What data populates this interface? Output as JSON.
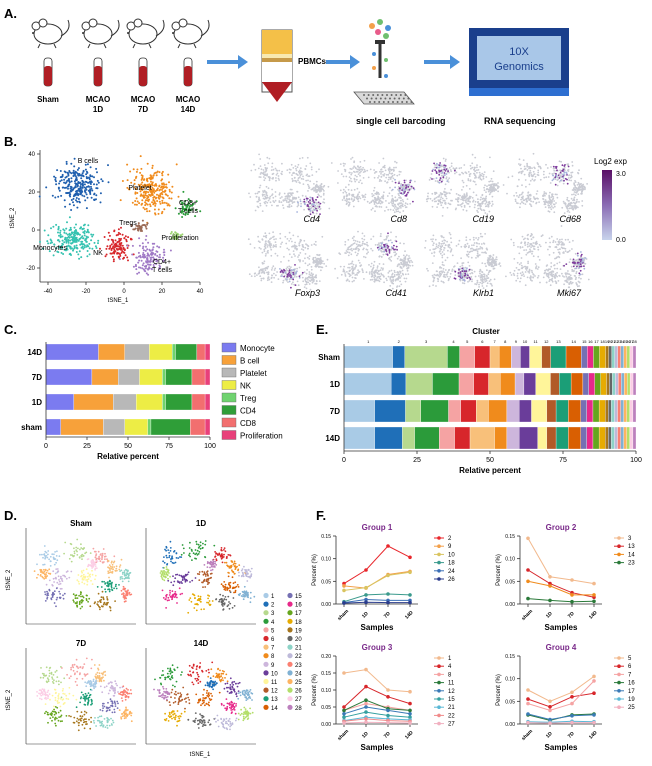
{
  "panels": {
    "a": {
      "label": "A.",
      "groups": [
        "Sham",
        "MCAO\n1D",
        "MCAO\n7D",
        "MCAO\n14D"
      ],
      "pbmc_label": "PBMCs",
      "barcoding_label": "single cell barcoding",
      "sequencing_label": "RNA sequencing",
      "genomics_logo": "10X\nGenomics"
    },
    "b": {
      "label": "B.",
      "tsne_xlabel": "tSNE_1",
      "tsne_ylabel": "tSNE_2",
      "x_ticks": [
        "-40",
        "-20",
        "0",
        "20",
        "40"
      ],
      "y_ticks": [
        "40",
        "20",
        "0",
        "-20"
      ],
      "clusters": [
        "B cells",
        "Platelet",
        "CD8+\nT cells",
        "Tregs",
        "Proliferation",
        "Monocytes",
        "NK",
        "CD4+\nT cells"
      ],
      "genes": [
        "Cd4",
        "Cd8",
        "Cd19",
        "Cd68",
        "Foxp3",
        "Cd41",
        "Klrb1",
        "Mki67"
      ],
      "colorbar_title": "Log2 exp",
      "colorbar_max": "3.0",
      "colorbar_min": "0.0"
    },
    "c": {
      "label": "C."
    },
    "d": {
      "label": "D.",
      "conditions": [
        "Sham",
        "1D",
        "7D",
        "14D"
      ],
      "ylabel": "tSNE_2",
      "xlabel": "tSNE_1",
      "legend_labels": [
        "1",
        "2",
        "3",
        "4",
        "5",
        "6",
        "7",
        "8",
        "9",
        "10",
        "11",
        "12",
        "13",
        "14",
        "15",
        "16",
        "17",
        "18",
        "19",
        "20",
        "21",
        "22",
        "23",
        "24",
        "25",
        "26",
        "27",
        "28"
      ]
    },
    "e": {
      "label": "E."
    },
    "f": {
      "label": "F."
    }
  },
  "chart_data": [
    {
      "id": "C",
      "type": "bar",
      "orientation": "horizontal-stacked",
      "categories": [
        "14D",
        "7D",
        "1D",
        "sham"
      ],
      "xlabel": "Relative percent",
      "xlim": [
        0,
        100
      ],
      "x_ticks": [
        "0",
        "25",
        "50",
        "75",
        "100"
      ],
      "series": [
        {
          "name": "Monocyte",
          "color": "#7b7bf0",
          "values": [
            32,
            28,
            17,
            9
          ]
        },
        {
          "name": "B cell",
          "color": "#f7a13a",
          "values": [
            16,
            16,
            24,
            26
          ]
        },
        {
          "name": "Platelet",
          "color": "#b8b8b8",
          "values": [
            15,
            13,
            14,
            13
          ]
        },
        {
          "name": "NK",
          "color": "#eded45",
          "values": [
            14,
            14,
            16,
            14
          ]
        },
        {
          "name": "Treg",
          "color": "#6fd36f",
          "values": [
            2,
            2,
            2,
            2
          ]
        },
        {
          "name": "CD4",
          "color": "#2f9e38",
          "values": [
            13,
            16,
            16,
            24
          ]
        },
        {
          "name": "CD8",
          "color": "#f26f6f",
          "values": [
            5,
            8,
            8,
            9
          ]
        },
        {
          "name": "Proliferation",
          "color": "#e8407a",
          "values": [
            3,
            3,
            3,
            3
          ]
        }
      ]
    },
    {
      "id": "E",
      "type": "bar",
      "orientation": "horizontal-stacked",
      "title": "Cluster",
      "categories": [
        "Sham",
        "1D",
        "7D",
        "14D"
      ],
      "xlabel": "Relative percent",
      "xlim": [
        0,
        100
      ],
      "x_ticks": [
        "0",
        "25",
        "50",
        "75",
        "100"
      ],
      "top_ticks": [
        "1",
        "2",
        "3",
        "4",
        "5",
        "6",
        "7",
        "8",
        "9",
        "10",
        "11",
        "12",
        "13",
        "14",
        "15",
        "16",
        "17",
        "18",
        "19",
        "20",
        "21",
        "22",
        "23",
        "24",
        "25",
        "26",
        "27",
        "28"
      ],
      "series": [
        {
          "name": "1",
          "color": "#a9cbe6",
          "values": [
            16,
            16,
            10,
            10
          ]
        },
        {
          "name": "2",
          "color": "#1f6fb8",
          "values": [
            4,
            5,
            10,
            9
          ]
        },
        {
          "name": "3",
          "color": "#b6d98e",
          "values": [
            14,
            9,
            5,
            4
          ]
        },
        {
          "name": "4",
          "color": "#2b9b3a",
          "values": [
            4,
            9,
            9,
            8
          ]
        },
        {
          "name": "5",
          "color": "#f5a3a3",
          "values": [
            5,
            5,
            4,
            5
          ]
        },
        {
          "name": "6",
          "color": "#d7262b",
          "values": [
            5,
            5,
            5,
            5
          ]
        },
        {
          "name": "7",
          "color": "#f8c07a",
          "values": [
            3,
            4,
            4,
            8
          ]
        },
        {
          "name": "8",
          "color": "#f08b1c",
          "values": [
            4,
            5,
            6,
            4
          ]
        },
        {
          "name": "9",
          "color": "#cdb6dc",
          "values": [
            3,
            3,
            4,
            4
          ]
        },
        {
          "name": "10",
          "color": "#6a3d9a",
          "values": [
            3,
            4,
            4,
            6
          ]
        },
        {
          "name": "11",
          "color": "#fff59a",
          "values": [
            4,
            5,
            5,
            3
          ]
        },
        {
          "name": "12",
          "color": "#b15a28",
          "values": [
            3,
            3,
            3,
            3
          ]
        },
        {
          "name": "13",
          "color": "#1b9e77",
          "values": [
            5,
            4,
            4,
            4
          ]
        },
        {
          "name": "14",
          "color": "#d95f02",
          "values": [
            5,
            4,
            4,
            4
          ]
        },
        {
          "name": "15",
          "color": "#7570b3",
          "values": [
            2,
            2,
            2,
            2
          ]
        },
        {
          "name": "16",
          "color": "#e7298a",
          "values": [
            2,
            2,
            2,
            2
          ]
        },
        {
          "name": "17",
          "color": "#66a61e",
          "values": [
            2,
            2,
            2,
            2
          ]
        },
        {
          "name": "18",
          "color": "#e6ab02",
          "values": [
            2,
            2,
            2,
            2
          ]
        },
        {
          "name": "19",
          "color": "#a6761d",
          "values": [
            1,
            1,
            1,
            1
          ]
        },
        {
          "name": "20",
          "color": "#666666",
          "values": [
            1,
            1,
            1,
            1
          ]
        },
        {
          "name": "21",
          "color": "#8dd3c7",
          "values": [
            1,
            1,
            1,
            1
          ]
        },
        {
          "name": "22",
          "color": "#bebada",
          "values": [
            1,
            1,
            1,
            1
          ]
        },
        {
          "name": "23",
          "color": "#fb8072",
          "values": [
            1,
            1,
            1,
            1
          ]
        },
        {
          "name": "24",
          "color": "#80b1d3",
          "values": [
            1,
            1,
            1,
            1
          ]
        },
        {
          "name": "25",
          "color": "#fdb462",
          "values": [
            1,
            1,
            1,
            1
          ]
        },
        {
          "name": "26",
          "color": "#b3de69",
          "values": [
            1,
            1,
            1,
            1
          ]
        },
        {
          "name": "27",
          "color": "#fccde5",
          "values": [
            1,
            1,
            1,
            1
          ]
        },
        {
          "name": "28",
          "color": "#bc80bd",
          "values": [
            1,
            1,
            1,
            1
          ]
        }
      ]
    },
    {
      "id": "F1",
      "type": "line",
      "title": "Group 1",
      "x": [
        "sham",
        "1D",
        "7D",
        "14D"
      ],
      "xlabel": "Samples",
      "ylabel": "Percent (%)",
      "ylim": [
        0,
        0.15
      ],
      "y_ticks": [
        "0.00",
        "0.05",
        "0.10",
        "0.15"
      ],
      "series": [
        {
          "name": "2",
          "color": "#e8262b",
          "values": [
            0.045,
            0.075,
            0.128,
            0.103
          ]
        },
        {
          "name": "9",
          "color": "#f3a04a",
          "values": [
            0.04,
            0.035,
            0.065,
            0.072
          ]
        },
        {
          "name": "10",
          "color": "#d9c460",
          "values": [
            0.03,
            0.036,
            0.063,
            0.07
          ]
        },
        {
          "name": "18",
          "color": "#3a9a8c",
          "values": [
            0.005,
            0.02,
            0.022,
            0.02
          ]
        },
        {
          "name": "24",
          "color": "#3b6fb6",
          "values": [
            0.003,
            0.01,
            0.008,
            0.008
          ]
        },
        {
          "name": "26",
          "color": "#2b3c8c",
          "values": [
            0.002,
            0.004,
            0.003,
            0.003
          ]
        }
      ]
    },
    {
      "id": "F2",
      "type": "line",
      "title": "Group 2",
      "x": [
        "sham",
        "1D",
        "7D",
        "14D"
      ],
      "xlabel": "Samples",
      "ylabel": "Percent (%)",
      "ylim": [
        0,
        0.15
      ],
      "y_ticks": [
        "0.00",
        "0.05",
        "0.10",
        "0.15"
      ],
      "series": [
        {
          "name": "3",
          "color": "#f2b98d",
          "values": [
            0.145,
            0.06,
            0.053,
            0.045
          ]
        },
        {
          "name": "13",
          "color": "#d7262b",
          "values": [
            0.075,
            0.045,
            0.025,
            0.015
          ]
        },
        {
          "name": "14",
          "color": "#f08b1c",
          "values": [
            0.05,
            0.04,
            0.02,
            0.02
          ]
        },
        {
          "name": "23",
          "color": "#2b7a3a",
          "values": [
            0.012,
            0.008,
            0.005,
            0.006
          ]
        }
      ]
    },
    {
      "id": "F3",
      "type": "line",
      "title": "Group 3",
      "x": [
        "sham",
        "1D",
        "7D",
        "14D"
      ],
      "xlabel": "Samples",
      "ylabel": "Percent (%)",
      "ylim": [
        0,
        0.2
      ],
      "y_ticks": [
        "0.00",
        "0.05",
        "0.10",
        "0.15",
        "0.20"
      ],
      "series": [
        {
          "name": "1",
          "color": "#f2b98d",
          "values": [
            0.15,
            0.16,
            0.1,
            0.095
          ]
        },
        {
          "name": "4",
          "color": "#d7262b",
          "values": [
            0.05,
            0.11,
            0.08,
            0.06
          ]
        },
        {
          "name": "8",
          "color": "#f5a3a3",
          "values": [
            0.04,
            0.06,
            0.05,
            0.04
          ]
        },
        {
          "name": "11",
          "color": "#2b7a3a",
          "values": [
            0.04,
            0.07,
            0.045,
            0.04
          ]
        },
        {
          "name": "12",
          "color": "#3a7ab6",
          "values": [
            0.03,
            0.05,
            0.04,
            0.03
          ]
        },
        {
          "name": "15",
          "color": "#35a0a0",
          "values": [
            0.02,
            0.035,
            0.025,
            0.02
          ]
        },
        {
          "name": "21",
          "color": "#5bb8d6",
          "values": [
            0.01,
            0.02,
            0.015,
            0.012
          ]
        },
        {
          "name": "22",
          "color": "#f08b8b",
          "values": [
            0.008,
            0.015,
            0.01,
            0.008
          ]
        },
        {
          "name": "27",
          "color": "#f1b0c0",
          "values": [
            0.003,
            0.005,
            0.004,
            0.003
          ]
        }
      ]
    },
    {
      "id": "F4",
      "type": "line",
      "title": "Group 4",
      "x": [
        "sham",
        "1D",
        "7D",
        "14D"
      ],
      "xlabel": "Samples",
      "ylabel": "Percent (%)",
      "ylim": [
        0,
        0.15
      ],
      "y_ticks": [
        "0.00",
        "0.05",
        "0.10",
        "0.15"
      ],
      "series": [
        {
          "name": "5",
          "color": "#f2b98d",
          "values": [
            0.075,
            0.05,
            0.07,
            0.105
          ]
        },
        {
          "name": "6",
          "color": "#d7262b",
          "values": [
            0.055,
            0.038,
            0.06,
            0.068
          ]
        },
        {
          "name": "7",
          "color": "#f5a3a3",
          "values": [
            0.045,
            0.03,
            0.045,
            0.095
          ]
        },
        {
          "name": "16",
          "color": "#2b7a3a",
          "values": [
            0.02,
            0.008,
            0.02,
            0.022
          ]
        },
        {
          "name": "17",
          "color": "#3a7ab6",
          "values": [
            0.022,
            0.01,
            0.018,
            0.02
          ]
        },
        {
          "name": "19",
          "color": "#5bb8d6",
          "values": [
            0.005,
            0.004,
            0.006,
            0.005
          ]
        },
        {
          "name": "25",
          "color": "#f1b0c0",
          "values": [
            0.003,
            0.002,
            0.003,
            0.003
          ]
        }
      ]
    }
  ]
}
